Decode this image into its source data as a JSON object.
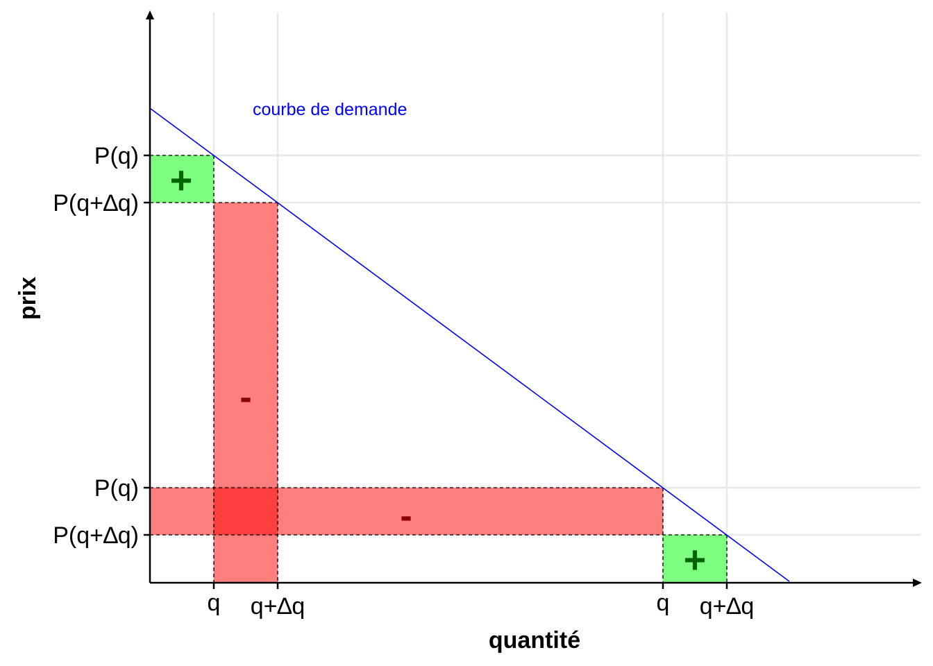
{
  "axes": {
    "x_title": "quantité",
    "y_title": "prix"
  },
  "x_ticks": [
    {
      "id": "q-left",
      "label": "q"
    },
    {
      "id": "qdq-left",
      "label": "q+∆q"
    },
    {
      "id": "q-right",
      "label": "q"
    },
    {
      "id": "qdq-right",
      "label": "q+∆q"
    }
  ],
  "y_ticks": [
    {
      "id": "pq-top",
      "label": "P(q)"
    },
    {
      "id": "pqdq-top",
      "label": "P(q+∆q)"
    },
    {
      "id": "pq-bottom",
      "label": "P(q)"
    },
    {
      "id": "pqdq-bottom",
      "label": "P(q+∆q)"
    }
  ],
  "demand_curve": {
    "label": "courbe de demande",
    "color": "#0000ff"
  },
  "regions": {
    "gain_sign": "+",
    "loss_sign": "-",
    "gain_color": "#00ff00",
    "loss_color": "#ff0000"
  }
}
